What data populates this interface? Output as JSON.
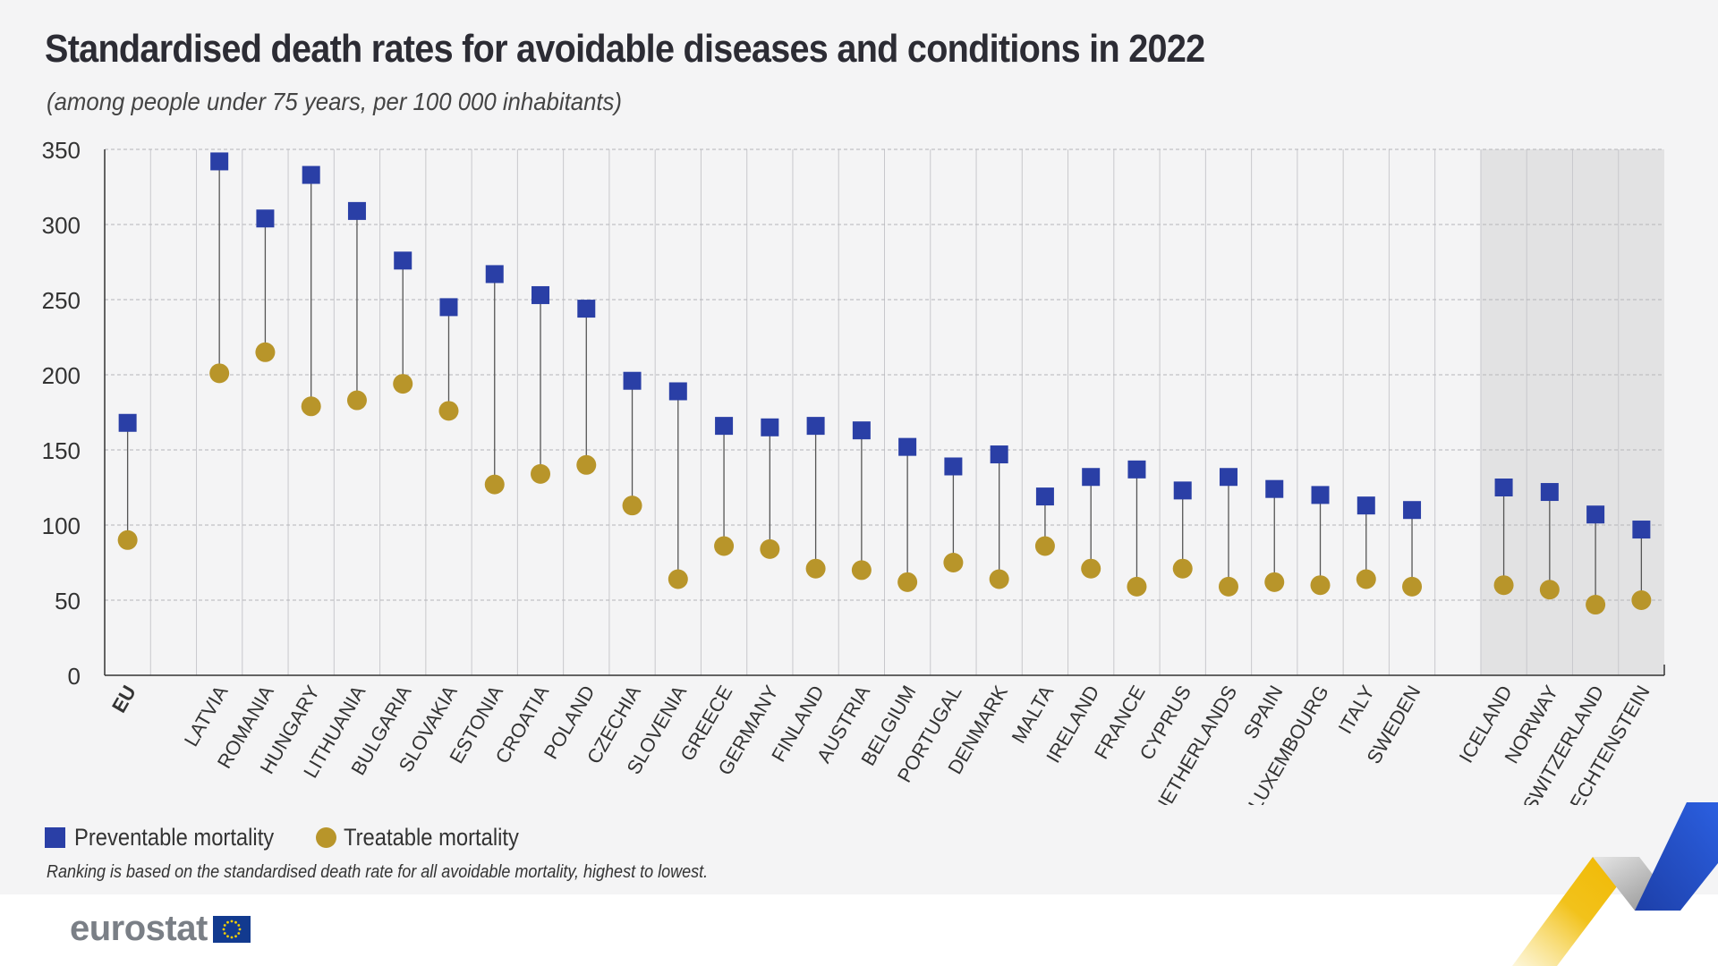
{
  "header": {
    "title": "Standardised death rates for avoidable diseases and conditions in 2022",
    "subtitle": "(among people under 75 years, per 100 000 inhabitants)"
  },
  "legend": {
    "preventable_label": "Preventable mortality",
    "treatable_label": "Treatable mortality"
  },
  "note": "Ranking is based on the standardised death rate for all avoidable mortality, highest to lowest.",
  "logo": {
    "text": "eurostat"
  },
  "colors": {
    "preventable": "#2a3fa6",
    "treatable": "#b8952a",
    "shaded_band": "#e2e2e3"
  },
  "chart_data": {
    "type": "scatter",
    "title": "Standardised death rates for avoidable diseases and conditions in 2022",
    "ylim": [
      0,
      350
    ],
    "yticks": [
      0,
      50,
      100,
      150,
      200,
      250,
      300,
      350
    ],
    "grid": true,
    "legend_position": "bottom-left",
    "categories": [
      "EU",
      "",
      "LATVIA",
      "ROMANIA",
      "HUNGARY",
      "LITHUANIA",
      "BULGARIA",
      "SLOVAKIA",
      "ESTONIA",
      "CROATIA",
      "POLAND",
      "CZECHIA",
      "SLOVENIA",
      "GREECE",
      "GERMANY",
      "FINLAND",
      "AUSTRIA",
      "BELGIUM",
      "PORTUGAL",
      "DENMARK",
      "MALTA",
      "IRELAND",
      "FRANCE",
      "CYPRUS",
      "NETHERLANDS",
      "SPAIN",
      "LUXEMBOURG",
      "ITALY",
      "SWEDEN",
      "",
      "ICELAND",
      "NORWAY",
      "SWITZERLAND",
      "LIECHTENSTEIN"
    ],
    "shaded_categories": [
      "ICELAND",
      "NORWAY",
      "SWITZERLAND",
      "LIECHTENSTEIN"
    ],
    "series": [
      {
        "name": "Preventable mortality",
        "marker": "square",
        "values": [
          168,
          null,
          342,
          304,
          333,
          309,
          276,
          245,
          267,
          253,
          244,
          196,
          189,
          166,
          165,
          166,
          163,
          152,
          139,
          147,
          119,
          132,
          137,
          123,
          132,
          124,
          120,
          113,
          110,
          null,
          125,
          122,
          107,
          97
        ]
      },
      {
        "name": "Treatable mortality",
        "marker": "circle",
        "values": [
          90,
          null,
          201,
          215,
          179,
          183,
          194,
          176,
          127,
          134,
          140,
          113,
          64,
          86,
          84,
          71,
          70,
          62,
          75,
          64,
          86,
          71,
          59,
          71,
          59,
          62,
          60,
          64,
          59,
          null,
          60,
          57,
          47,
          50
        ]
      }
    ]
  }
}
